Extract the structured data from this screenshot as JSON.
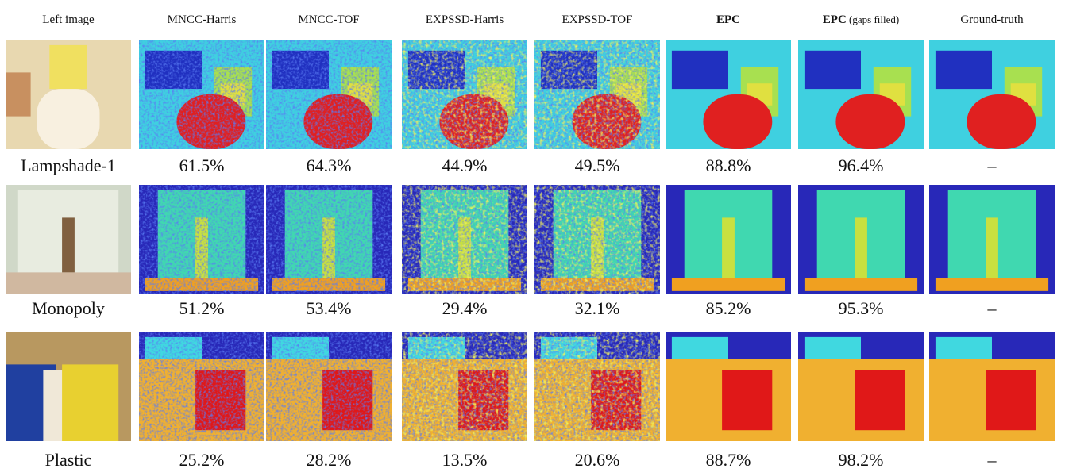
{
  "columns": [
    {
      "label": "Left image"
    },
    {
      "label": "MNCC-Harris"
    },
    {
      "label": "MNCC-TOF"
    },
    {
      "label": "EXPSSD-Harris"
    },
    {
      "label": "EXPSSD-TOF"
    },
    {
      "label": "EPC",
      "bold": true
    },
    {
      "label": "EPC",
      "bold": true,
      "suffix": "(gaps filled)"
    },
    {
      "label": "Ground-truth"
    }
  ],
  "rows": [
    {
      "name": "Lampshade-1",
      "scores": [
        "61.5%",
        "64.3%",
        "44.9%",
        "49.5%",
        "88.8%",
        "96.4%",
        "–"
      ]
    },
    {
      "name": "Monopoly",
      "scores": [
        "51.2%",
        "53.4%",
        "29.4%",
        "32.1%",
        "85.2%",
        "95.3%",
        "–"
      ]
    },
    {
      "name": "Plastic",
      "scores": [
        "25.2%",
        "28.2%",
        "13.5%",
        "20.6%",
        "88.7%",
        "98.2%",
        "–"
      ]
    }
  ]
}
